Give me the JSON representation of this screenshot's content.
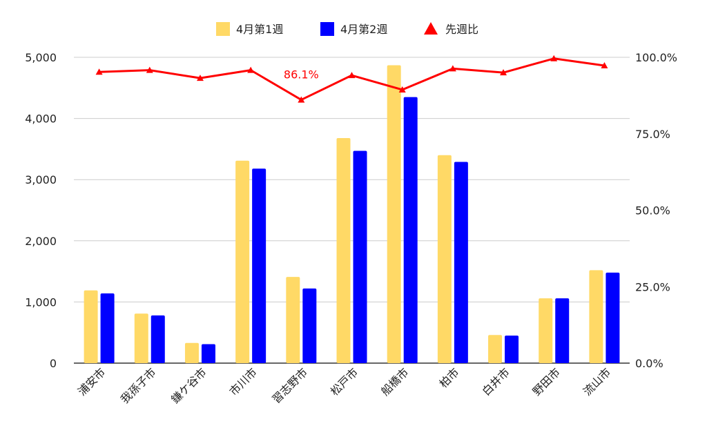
{
  "chart_data": {
    "type": "bar",
    "categories": [
      "浦安市",
      "我孫子市",
      "鎌ケ谷市",
      "市川市",
      "習志野市",
      "松戸市",
      "船橋市",
      "柏市",
      "白井市",
      "野田市",
      "流山市"
    ],
    "series": [
      {
        "name": "4月第1週",
        "type": "bar",
        "axis": "left",
        "color": "#FFD966",
        "values": [
          1190,
          810,
          330,
          3310,
          1410,
          3680,
          4870,
          3400,
          460,
          1060,
          1520
        ]
      },
      {
        "name": "4月第2週",
        "type": "bar",
        "axis": "left",
        "color": "#0000FF",
        "values": [
          1140,
          780,
          310,
          3180,
          1220,
          3470,
          4350,
          3290,
          450,
          1060,
          1480
        ]
      },
      {
        "name": "先週比",
        "type": "line",
        "axis": "right",
        "color": "#FF0000",
        "marker": "triangle",
        "values": [
          95.2,
          95.8,
          93.2,
          95.8,
          86.1,
          94.1,
          89.4,
          96.3,
          95.0,
          99.6,
          97.3
        ]
      }
    ],
    "y_left": {
      "ticks": [
        "0",
        "1,000",
        "2,000",
        "3,000",
        "4,000",
        "5,000"
      ],
      "range": [
        0,
        5000
      ]
    },
    "y_right": {
      "ticks": [
        "0.0%",
        "25.0%",
        "50.0%",
        "75.0%",
        "100.0%"
      ],
      "range": [
        0,
        100
      ]
    },
    "annotations": [
      {
        "category": "習志野市",
        "series": "先週比",
        "text": "86.1%",
        "color": "#FF0000"
      }
    ],
    "legend_position": "top-center",
    "grid": true
  }
}
